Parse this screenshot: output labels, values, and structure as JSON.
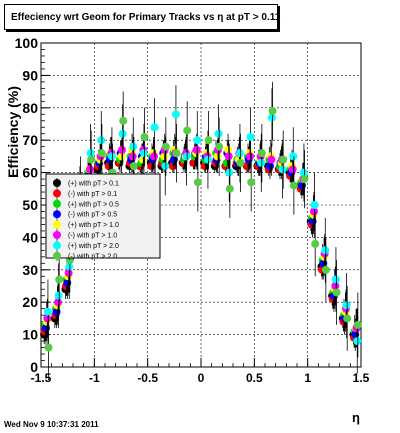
{
  "title": "Effeciency wrt Geom for Primary Tracks vs    η at pT > 0.11",
  "footer": "Wed Nov  9 10:37:31 2011",
  "chart_data": {
    "type": "scatter",
    "title": "Effeciency wrt Geom for Primary Tracks vs    η at pT > 0.11",
    "xlabel": "η",
    "ylabel": "Efficiency (%)",
    "xlim": [
      -1.5,
      1.5
    ],
    "ylim": [
      0,
      100
    ],
    "x_ticks": [
      "-1.5",
      "-1",
      "-0.5",
      "0",
      "0.5",
      "1",
      "1.5"
    ],
    "y_ticks": [
      "0",
      "10",
      "20",
      "30",
      "40",
      "50",
      "60",
      "70",
      "80",
      "90",
      "100"
    ],
    "grid": true,
    "legend_position": "left-middle",
    "x": [
      -1.45,
      -1.35,
      -1.25,
      -1.15,
      -1.05,
      -0.95,
      -0.85,
      -0.75,
      -0.65,
      -0.55,
      -0.45,
      -0.35,
      -0.25,
      -0.15,
      -0.05,
      0.05,
      0.15,
      0.25,
      0.35,
      0.45,
      0.55,
      0.65,
      0.75,
      0.85,
      0.95,
      1.05,
      1.15,
      1.25,
      1.35,
      1.45
    ],
    "series": [
      {
        "name": "(+) with pT > 0.1",
        "color": "#000000",
        "values": [
          10,
          15,
          24,
          46,
          58,
          61,
          63,
          63,
          62,
          62,
          63,
          62,
          63,
          63,
          63,
          63,
          62,
          62,
          62,
          62,
          62,
          62,
          61,
          60,
          56,
          45,
          31,
          22,
          15,
          10
        ],
        "errors": [
          3,
          3,
          3,
          3,
          2,
          2,
          2,
          2,
          2,
          2,
          2,
          2,
          2,
          2,
          2,
          2,
          2,
          2,
          2,
          2,
          2,
          2,
          2,
          2,
          2,
          3,
          3,
          3,
          3,
          3
        ]
      },
      {
        "name": "(-) with pT > 0.1",
        "color": "#ff0000",
        "values": [
          11,
          16,
          25,
          47,
          58,
          62,
          62,
          63,
          63,
          62,
          62,
          63,
          62,
          63,
          63,
          62,
          63,
          62,
          63,
          62,
          62,
          61,
          61,
          59,
          55,
          44,
          30,
          21,
          14,
          9
        ],
        "errors": [
          3,
          3,
          3,
          3,
          2,
          2,
          2,
          2,
          2,
          2,
          2,
          2,
          2,
          2,
          2,
          2,
          2,
          2,
          2,
          2,
          2,
          2,
          2,
          2,
          2,
          3,
          3,
          3,
          3,
          3
        ]
      },
      {
        "name": "(+) with pT > 0.5",
        "color": "#00dd00",
        "values": [
          13,
          18,
          27,
          48,
          60,
          63,
          65,
          64,
          65,
          63,
          65,
          64,
          66,
          64,
          65,
          64,
          66,
          63,
          64,
          65,
          63,
          64,
          62,
          61,
          57,
          46,
          33,
          23,
          16,
          11
        ],
        "errors": [
          5,
          5,
          5,
          5,
          4,
          4,
          4,
          4,
          4,
          4,
          4,
          4,
          4,
          4,
          4,
          4,
          4,
          4,
          4,
          4,
          4,
          4,
          4,
          4,
          4,
          5,
          5,
          5,
          5,
          5
        ]
      },
      {
        "name": "(-) with pT > 0.5",
        "color": "#0000ff",
        "values": [
          12,
          17,
          26,
          47,
          59,
          63,
          64,
          66,
          64,
          65,
          64,
          66,
          64,
          65,
          66,
          65,
          64,
          66,
          63,
          64,
          63,
          62,
          63,
          60,
          56,
          45,
          32,
          22,
          15,
          10
        ],
        "errors": [
          5,
          5,
          5,
          5,
          4,
          4,
          4,
          4,
          4,
          4,
          4,
          4,
          4,
          4,
          4,
          4,
          4,
          4,
          4,
          4,
          4,
          4,
          4,
          4,
          4,
          5,
          5,
          5,
          5,
          5
        ]
      },
      {
        "name": "(+) with pT > 1.0",
        "color": "#ffff00",
        "values": [
          14,
          19,
          28,
          49,
          61,
          64,
          66,
          65,
          67,
          64,
          66,
          65,
          67,
          65,
          66,
          66,
          65,
          67,
          64,
          66,
          64,
          65,
          63,
          62,
          58,
          47,
          34,
          24,
          17,
          12
        ],
        "errors": [
          6,
          6,
          6,
          6,
          5,
          5,
          5,
          5,
          5,
          5,
          5,
          5,
          5,
          5,
          5,
          5,
          5,
          5,
          5,
          5,
          5,
          5,
          5,
          5,
          5,
          6,
          6,
          6,
          6,
          6
        ]
      },
      {
        "name": "(-) with pT > 1.0",
        "color": "#ff00ff",
        "values": [
          15,
          20,
          29,
          50,
          61,
          65,
          66,
          67,
          65,
          67,
          65,
          67,
          66,
          66,
          67,
          65,
          67,
          65,
          66,
          65,
          65,
          64,
          64,
          61,
          58,
          48,
          35,
          25,
          18,
          12
        ],
        "errors": [
          6,
          6,
          6,
          6,
          5,
          5,
          5,
          5,
          5,
          5,
          5,
          5,
          5,
          5,
          5,
          5,
          5,
          5,
          5,
          5,
          5,
          5,
          5,
          5,
          5,
          6,
          6,
          6,
          6,
          6
        ]
      },
      {
        "name": "(+) with pT > 2.0",
        "color": "#00ffff",
        "values": [
          17,
          22,
          31,
          52,
          66,
          70,
          65,
          72,
          68,
          66,
          74,
          62,
          78,
          65,
          70,
          64,
          72,
          60,
          66,
          71,
          63,
          77,
          61,
          65,
          60,
          50,
          36,
          27,
          19,
          8
        ],
        "errors": [
          10,
          10,
          10,
          10,
          9,
          9,
          9,
          9,
          9,
          9,
          9,
          9,
          9,
          9,
          9,
          9,
          9,
          9,
          9,
          9,
          9,
          9,
          9,
          9,
          9,
          10,
          10,
          10,
          10,
          10
        ]
      },
      {
        "name": "(-) with pT > 2.0",
        "color": "#55cc44",
        "values": [
          6,
          27,
          33,
          55,
          64,
          66,
          60,
          76,
          62,
          71,
          58,
          68,
          66,
          73,
          57,
          70,
          68,
          55,
          63,
          57,
          66,
          79,
          64,
          56,
          58,
          38,
          30,
          23,
          15,
          13
        ],
        "errors": [
          10,
          10,
          10,
          10,
          9,
          9,
          9,
          9,
          9,
          9,
          9,
          9,
          9,
          9,
          9,
          9,
          9,
          9,
          9,
          9,
          9,
          9,
          9,
          9,
          9,
          10,
          10,
          10,
          10,
          10
        ]
      }
    ]
  }
}
